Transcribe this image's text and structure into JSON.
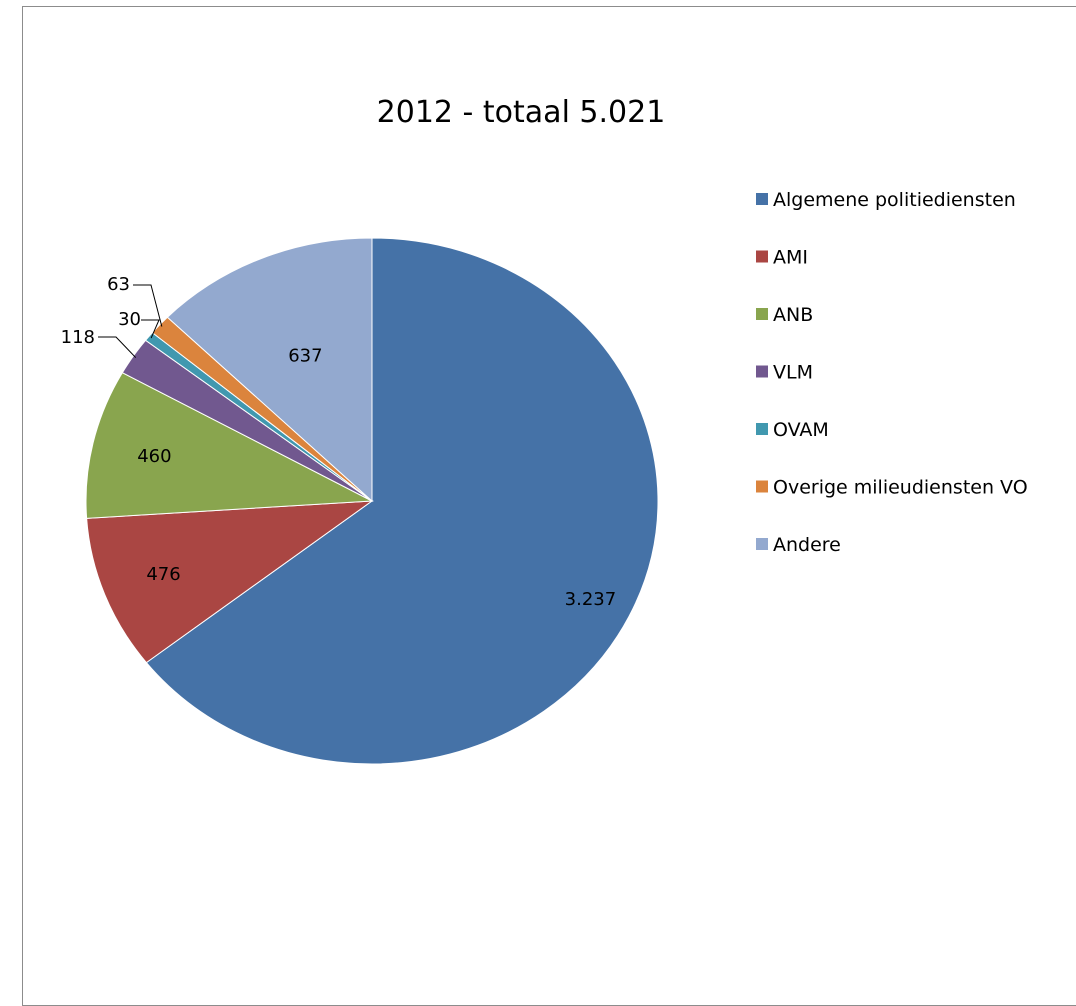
{
  "chart_data": {
    "type": "pie",
    "title": "2012 - totaal 5.021",
    "legend_position": "right",
    "slices": [
      {
        "label": "Algemene politiediensten",
        "value": 3237,
        "value_label": "3.237",
        "color": "#4572a7"
      },
      {
        "label": "AMI",
        "value": 476,
        "value_label": "476",
        "color": "#aa4643"
      },
      {
        "label": "ANB",
        "value": 460,
        "value_label": "460",
        "color": "#89a54e"
      },
      {
        "label": "VLM",
        "value": 118,
        "value_label": "118",
        "color": "#71588f"
      },
      {
        "label": "OVAM",
        "value": 30,
        "value_label": "30",
        "color": "#4198af"
      },
      {
        "label": "Overige milieudiensten VO",
        "value": 63,
        "value_label": "63",
        "color": "#db843d"
      },
      {
        "label": "Andere",
        "value": 637,
        "value_label": "637",
        "color": "#93a9cf"
      }
    ]
  }
}
